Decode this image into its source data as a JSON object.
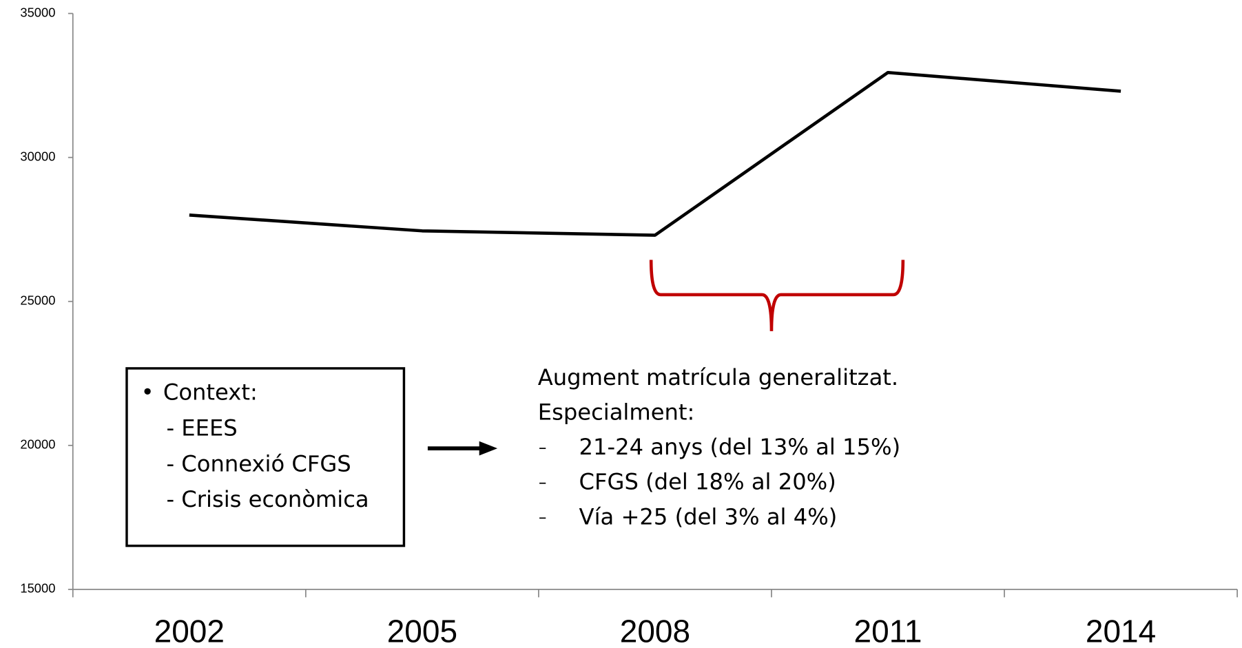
{
  "chart_data": {
    "type": "line",
    "categories": [
      "2002",
      "2005",
      "2008",
      "2011",
      "2014"
    ],
    "series": [
      {
        "color": "#000000",
        "values": [
          28000,
          27450,
          27300,
          32950,
          32300
        ]
      }
    ],
    "ylim": [
      15000,
      35000
    ],
    "yticks": [
      15000,
      20000,
      25000,
      30000,
      35000
    ],
    "grid": false,
    "annotations": {
      "box": [
        "Context:",
        "- EEES",
        "- Connexió CFGS",
        "- Crisis econòmica"
      ],
      "note_heading": [
        "Augment matrícula generalitzat.",
        "Especialment:"
      ],
      "note_items": [
        "21-24 anys (del 13% al 15%)",
        "CFGS (del 18% al 20%)",
        "Vía +25 (del 3% al 4%)"
      ]
    }
  }
}
